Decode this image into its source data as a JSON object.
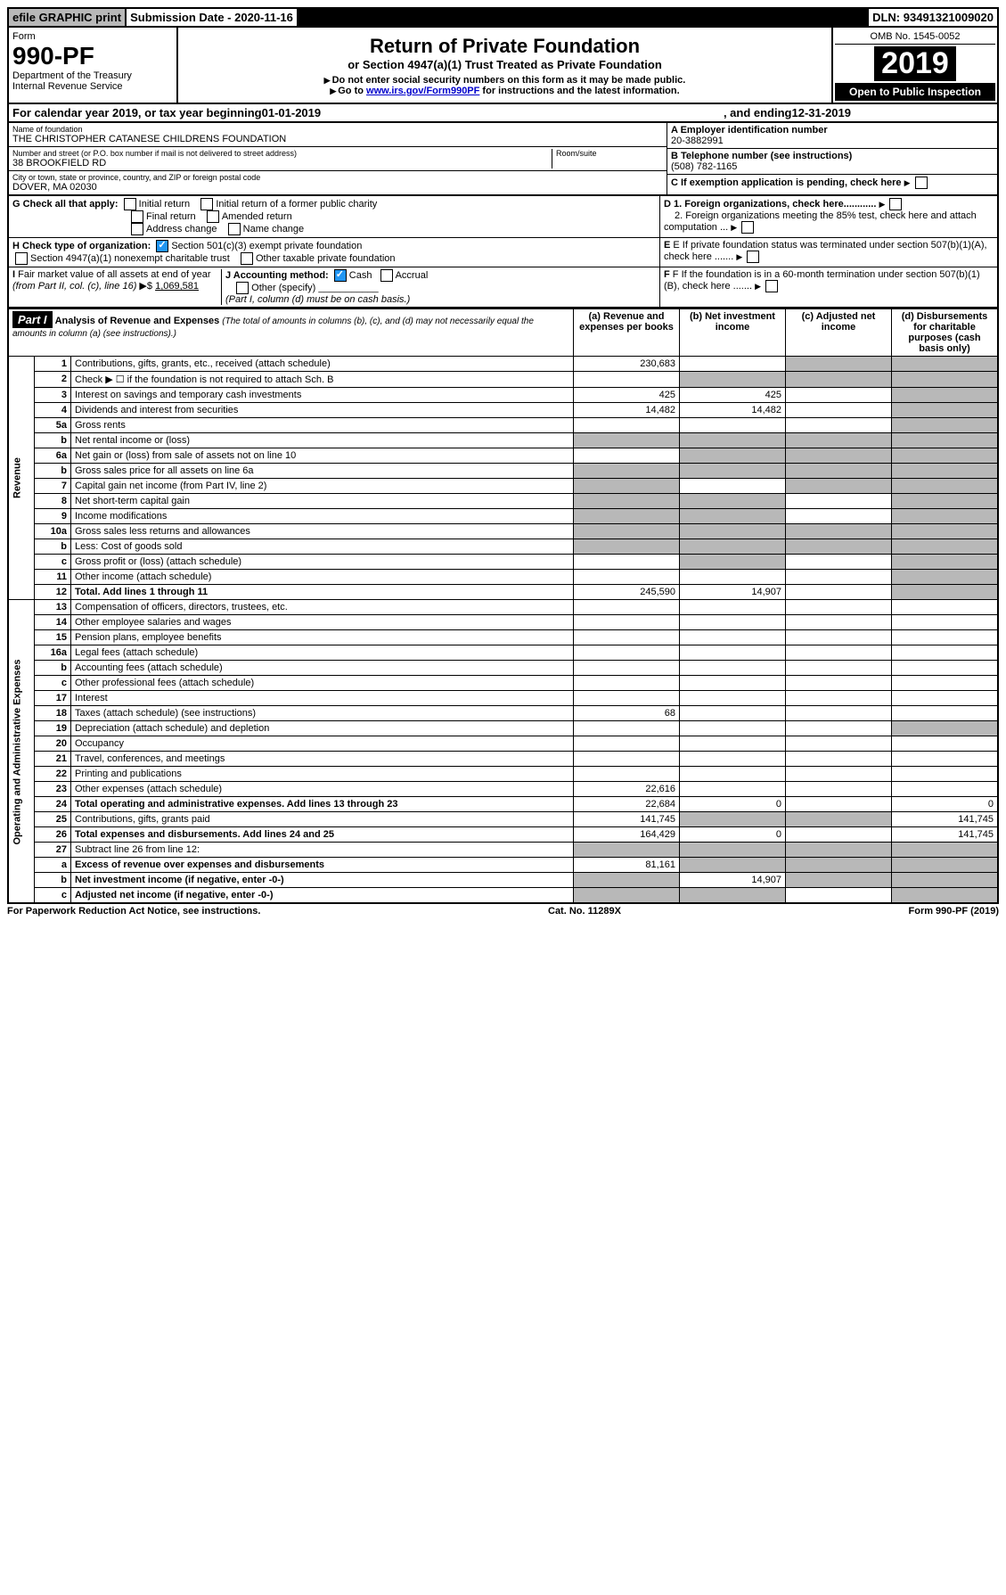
{
  "topbar": {
    "efile": "efile GRAPHIC print",
    "subdate_label": "Submission Date - ",
    "subdate": "2020-11-16",
    "dln_label": "DLN: ",
    "dln": "93491321009020"
  },
  "header": {
    "form_label": "Form",
    "form_no": "990-PF",
    "dept": "Department of the Treasury",
    "irs": "Internal Revenue Service",
    "title": "Return of Private Foundation",
    "subtitle": "or Section 4947(a)(1) Trust Treated as Private Foundation",
    "instr1": "Do not enter social security numbers on this form as it may be made public.",
    "instr2_a": "Go to ",
    "instr2_link": "www.irs.gov/Form990PF",
    "instr2_b": " for instructions and the latest information.",
    "omb": "OMB No. 1545-0052",
    "year": "2019",
    "open": "Open to Public Inspection"
  },
  "calyear": {
    "a": "For calendar year 2019, or tax year beginning ",
    "begin": "01-01-2019",
    "b": " , and ending ",
    "end": "12-31-2019"
  },
  "info": {
    "name_label": "Name of foundation",
    "name": "THE CHRISTOPHER CATANESE CHILDRENS FOUNDATION",
    "addr_label": "Number and street (or P.O. box number if mail is not delivered to street address)",
    "addr": "38 BROOKFIELD RD",
    "room_label": "Room/suite",
    "city_label": "City or town, state or province, country, and ZIP or foreign postal code",
    "city": "DOVER, MA  02030",
    "a_label": "A Employer identification number",
    "a_val": "20-3882991",
    "b_label": "B Telephone number (see instructions)",
    "b_val": "(508) 782-1165",
    "c_label": "C If exemption application is pending, check here",
    "g_label": "G Check all that apply:",
    "g1": "Initial return",
    "g2": "Initial return of a former public charity",
    "g3": "Final return",
    "g4": "Amended return",
    "g5": "Address change",
    "g6": "Name change",
    "d1": "D 1. Foreign organizations, check here............",
    "d2": "2. Foreign organizations meeting the 85% test, check here and attach computation ...",
    "h_label": "H Check type of organization:",
    "h1": "Section 501(c)(3) exempt private foundation",
    "h2": "Section 4947(a)(1) nonexempt charitable trust",
    "h3": "Other taxable private foundation",
    "e_label": "E  If private foundation status was terminated under section 507(b)(1)(A), check here .......",
    "i_label": "I Fair market value of all assets at end of year (from Part II, col. (c), line 16) ▶$ ",
    "i_val": "1,069,581",
    "j_label": "J Accounting method:",
    "j1": "Cash",
    "j2": "Accrual",
    "j3": "Other (specify)",
    "j_note": "(Part I, column (d) must be on cash basis.)",
    "f_label": "F  If the foundation is in a 60-month termination under section 507(b)(1)(B), check here ......."
  },
  "part1": {
    "title": "Part I",
    "heading": "Analysis of Revenue and Expenses",
    "heading_note": "(The total of amounts in columns (b), (c), and (d) may not necessarily equal the amounts in column (a) (see instructions).)",
    "col_a": "(a) Revenue and expenses per books",
    "col_b": "(b) Net investment income",
    "col_c": "(c) Adjusted net income",
    "col_d": "(d) Disbursements for charitable purposes (cash basis only)"
  },
  "sections": {
    "revenue": "Revenue",
    "expenses": "Operating and Administrative Expenses"
  },
  "rows": [
    {
      "n": "1",
      "d": "Contributions, gifts, grants, etc., received (attach schedule)",
      "a": "230,683",
      "b": "",
      "c": "shade",
      "dd": "shade"
    },
    {
      "n": "2",
      "d": "Check ▶ ☐ if the foundation is not required to attach Sch. B",
      "a": "",
      "b": "shade",
      "c": "shade",
      "dd": "shade"
    },
    {
      "n": "3",
      "d": "Interest on savings and temporary cash investments",
      "a": "425",
      "b": "425",
      "c": "",
      "dd": "shade"
    },
    {
      "n": "4",
      "d": "Dividends and interest from securities",
      "a": "14,482",
      "b": "14,482",
      "c": "",
      "dd": "shade"
    },
    {
      "n": "5a",
      "d": "Gross rents",
      "a": "",
      "b": "",
      "c": "",
      "dd": "shade"
    },
    {
      "n": "b",
      "d": "Net rental income or (loss)",
      "a": "shade",
      "b": "shade",
      "c": "shade",
      "dd": "shade"
    },
    {
      "n": "6a",
      "d": "Net gain or (loss) from sale of assets not on line 10",
      "a": "",
      "b": "shade",
      "c": "shade",
      "dd": "shade"
    },
    {
      "n": "b",
      "d": "Gross sales price for all assets on line 6a",
      "a": "shade",
      "b": "shade",
      "c": "shade",
      "dd": "shade"
    },
    {
      "n": "7",
      "d": "Capital gain net income (from Part IV, line 2)",
      "a": "shade",
      "b": "",
      "c": "shade",
      "dd": "shade"
    },
    {
      "n": "8",
      "d": "Net short-term capital gain",
      "a": "shade",
      "b": "shade",
      "c": "",
      "dd": "shade"
    },
    {
      "n": "9",
      "d": "Income modifications",
      "a": "shade",
      "b": "shade",
      "c": "",
      "dd": "shade"
    },
    {
      "n": "10a",
      "d": "Gross sales less returns and allowances",
      "a": "shade",
      "b": "shade",
      "c": "shade",
      "dd": "shade"
    },
    {
      "n": "b",
      "d": "Less: Cost of goods sold",
      "a": "shade",
      "b": "shade",
      "c": "shade",
      "dd": "shade"
    },
    {
      "n": "c",
      "d": "Gross profit or (loss) (attach schedule)",
      "a": "",
      "b": "shade",
      "c": "",
      "dd": "shade"
    },
    {
      "n": "11",
      "d": "Other income (attach schedule)",
      "a": "",
      "b": "",
      "c": "",
      "dd": "shade"
    },
    {
      "n": "12",
      "d": "Total. Add lines 1 through 11",
      "a": "245,590",
      "b": "14,907",
      "c": "",
      "dd": "shade",
      "bold": true
    },
    {
      "n": "13",
      "d": "Compensation of officers, directors, trustees, etc.",
      "a": "",
      "b": "",
      "c": "",
      "dd": ""
    },
    {
      "n": "14",
      "d": "Other employee salaries and wages",
      "a": "",
      "b": "",
      "c": "",
      "dd": ""
    },
    {
      "n": "15",
      "d": "Pension plans, employee benefits",
      "a": "",
      "b": "",
      "c": "",
      "dd": ""
    },
    {
      "n": "16a",
      "d": "Legal fees (attach schedule)",
      "a": "",
      "b": "",
      "c": "",
      "dd": ""
    },
    {
      "n": "b",
      "d": "Accounting fees (attach schedule)",
      "a": "",
      "b": "",
      "c": "",
      "dd": ""
    },
    {
      "n": "c",
      "d": "Other professional fees (attach schedule)",
      "a": "",
      "b": "",
      "c": "",
      "dd": ""
    },
    {
      "n": "17",
      "d": "Interest",
      "a": "",
      "b": "",
      "c": "",
      "dd": ""
    },
    {
      "n": "18",
      "d": "Taxes (attach schedule) (see instructions)",
      "a": "68",
      "b": "",
      "c": "",
      "dd": ""
    },
    {
      "n": "19",
      "d": "Depreciation (attach schedule) and depletion",
      "a": "",
      "b": "",
      "c": "",
      "dd": "shade"
    },
    {
      "n": "20",
      "d": "Occupancy",
      "a": "",
      "b": "",
      "c": "",
      "dd": ""
    },
    {
      "n": "21",
      "d": "Travel, conferences, and meetings",
      "a": "",
      "b": "",
      "c": "",
      "dd": ""
    },
    {
      "n": "22",
      "d": "Printing and publications",
      "a": "",
      "b": "",
      "c": "",
      "dd": ""
    },
    {
      "n": "23",
      "d": "Other expenses (attach schedule)",
      "a": "22,616",
      "b": "",
      "c": "",
      "dd": ""
    },
    {
      "n": "24",
      "d": "Total operating and administrative expenses. Add lines 13 through 23",
      "a": "22,684",
      "b": "0",
      "c": "",
      "dd": "0",
      "bold": true
    },
    {
      "n": "25",
      "d": "Contributions, gifts, grants paid",
      "a": "141,745",
      "b": "shade",
      "c": "shade",
      "dd": "141,745"
    },
    {
      "n": "26",
      "d": "Total expenses and disbursements. Add lines 24 and 25",
      "a": "164,429",
      "b": "0",
      "c": "",
      "dd": "141,745",
      "bold": true
    },
    {
      "n": "27",
      "d": "Subtract line 26 from line 12:",
      "a": "shade",
      "b": "shade",
      "c": "shade",
      "dd": "shade"
    },
    {
      "n": "a",
      "d": "Excess of revenue over expenses and disbursements",
      "a": "81,161",
      "b": "shade",
      "c": "shade",
      "dd": "shade",
      "bold": true
    },
    {
      "n": "b",
      "d": "Net investment income (if negative, enter -0-)",
      "a": "shade",
      "b": "14,907",
      "c": "shade",
      "dd": "shade",
      "bold": true
    },
    {
      "n": "c",
      "d": "Adjusted net income (if negative, enter -0-)",
      "a": "shade",
      "b": "shade",
      "c": "",
      "dd": "shade",
      "bold": true
    }
  ],
  "footer": {
    "left": "For Paperwork Reduction Act Notice, see instructions.",
    "mid": "Cat. No. 11289X",
    "right": "Form 990-PF (2019)"
  }
}
